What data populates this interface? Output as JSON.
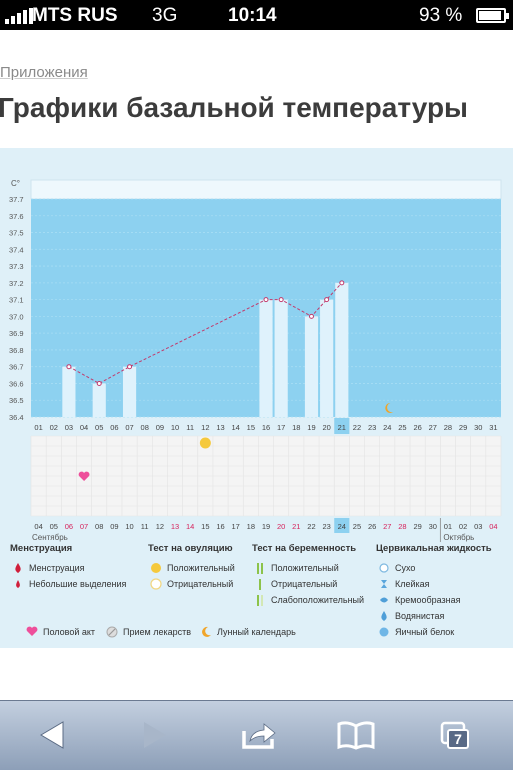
{
  "status_bar": {
    "carrier": "MTS RUS",
    "network": "3G",
    "time": "10:14",
    "battery": "93 %"
  },
  "breadcrumb": "Приложения",
  "page_title": "Графики базальной температуры",
  "colors": {
    "plot_bg": "#8dd1f0",
    "bar": "#dff2fc",
    "line": "#c23a6c",
    "panel": "#dff0f8",
    "weekend": "#d6235c",
    "highlight_day": "#8dd1f0"
  },
  "chart_data": {
    "type": "line",
    "unit_label": "C°",
    "y_ticks": [
      "37.7",
      "37.6",
      "37.5",
      "37.4",
      "37.3",
      "37.2",
      "37.1",
      "37.0",
      "36.9",
      "36.8",
      "36.7",
      "36.6",
      "36.5",
      "36.4"
    ],
    "ylim": [
      36.4,
      37.7
    ],
    "top_axis_days": [
      "01",
      "02",
      "03",
      "04",
      "05",
      "06",
      "07",
      "08",
      "09",
      "10",
      "11",
      "12",
      "13",
      "14",
      "15",
      "16",
      "17",
      "18",
      "19",
      "20",
      "21",
      "22",
      "23",
      "24",
      "25",
      "26",
      "27",
      "28",
      "29",
      "30",
      "31"
    ],
    "bottom_axis_days": [
      "04",
      "05",
      "06",
      "07",
      "08",
      "09",
      "10",
      "11",
      "12",
      "13",
      "14",
      "15",
      "16",
      "17",
      "18",
      "19",
      "20",
      "21",
      "22",
      "23",
      "24",
      "25",
      "26",
      "27",
      "28",
      "29",
      "30",
      "01",
      "02",
      "03",
      "04"
    ],
    "bottom_axis_weekend_indexes": [
      2,
      3,
      9,
      10,
      16,
      17,
      23,
      24,
      30
    ],
    "highlight_index": 20,
    "month_left": "Сентябрь",
    "month_right": "Октябрь",
    "month_break_index": 27,
    "series": [
      {
        "values": [
          {
            "day": 3,
            "temp": 36.7
          },
          {
            "day": 5,
            "temp": 36.6
          },
          {
            "day": 7,
            "temp": 36.7
          },
          {
            "day": 16,
            "temp": 37.1
          },
          {
            "day": 17,
            "temp": 37.1
          },
          {
            "day": 19,
            "temp": 37.0
          },
          {
            "day": 20,
            "temp": 37.1
          },
          {
            "day": 21,
            "temp": 37.2
          }
        ]
      }
    ],
    "markers": {
      "moon_day": 24,
      "ovulation_positive_day": 12,
      "intercourse_day": 4
    }
  },
  "legend": {
    "menstruation": {
      "title": "Менструация",
      "items": [
        "Менструация",
        "Небольшие выделения"
      ]
    },
    "ovulation": {
      "title": "Тест на овуляцию",
      "items": [
        "Положительный",
        "Отрицательный"
      ]
    },
    "pregnancy": {
      "title": "Тест на беременность",
      "items": [
        "Положительный",
        "Отрицательный",
        "Слабоположительный"
      ]
    },
    "cervical": {
      "title": "Цервикальная жидкость",
      "items": [
        "Сухо",
        "Клейкая",
        "Кремообразная",
        "Водянистая",
        "Яичный белок"
      ]
    },
    "bottom": [
      "Половой акт",
      "Прием лекарств",
      "Лунный календарь"
    ]
  },
  "toolbar": {
    "tabs_count": "7",
    "icons": [
      "back-icon",
      "forward-icon",
      "share-icon",
      "bookmarks-icon",
      "tabs-icon"
    ]
  }
}
